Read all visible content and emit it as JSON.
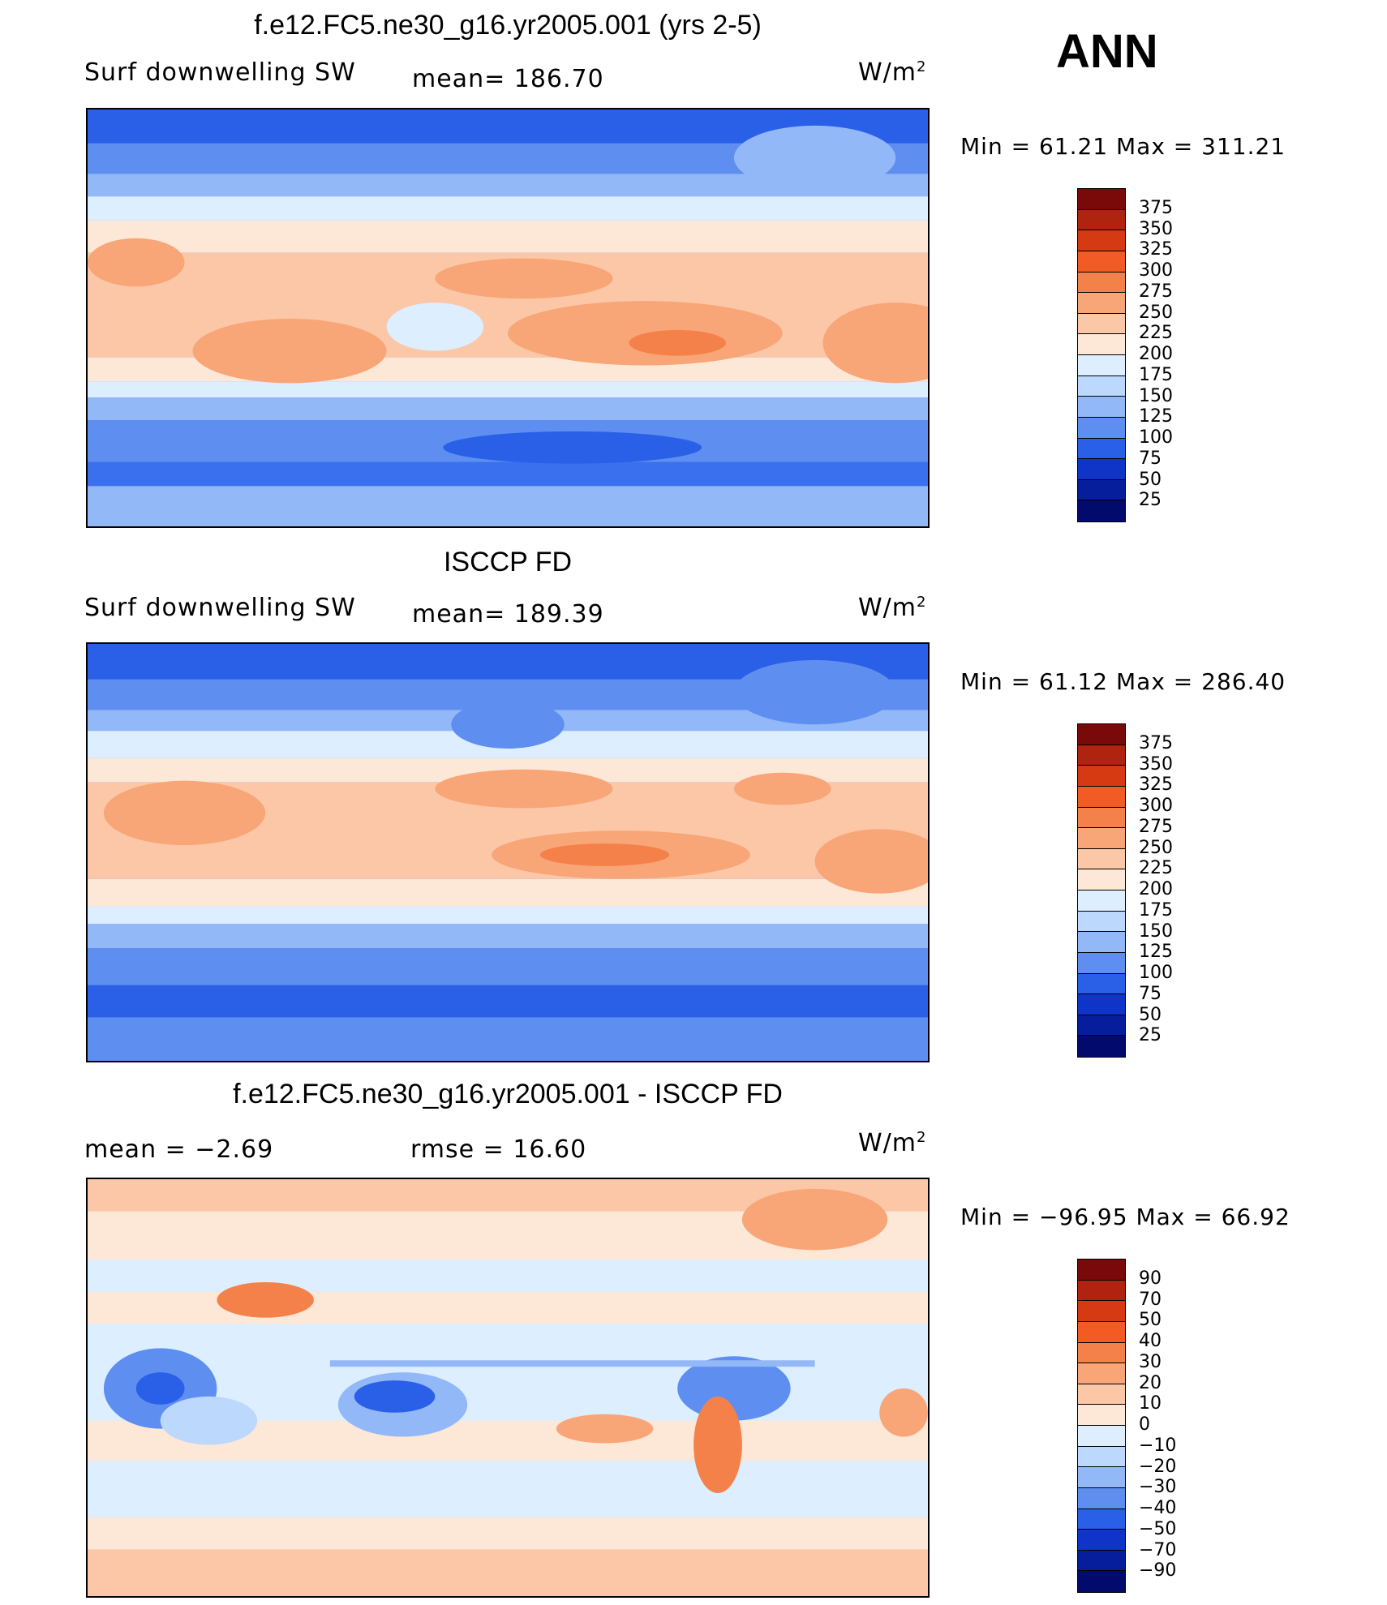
{
  "season": "ANN",
  "panels": [
    {
      "title": "f.e12.FC5.ne30_g16.yr2005.001 (yrs 2-5)",
      "left_text": "Surf  downwelling  SW",
      "mid_text": "mean=  186.70",
      "units_base": "W/m",
      "units_exp": "2",
      "minmax": "Min  =    61.21  Max  =  311.21",
      "colorbar": {
        "labels": [
          "375",
          "350",
          "325",
          "300",
          "275",
          "250",
          "225",
          "200",
          "175",
          "150",
          "125",
          "100",
          "75",
          "50",
          "25"
        ],
        "colors": [
          "#7a0a0a",
          "#b0230e",
          "#d63a12",
          "#f25c24",
          "#f5814a",
          "#f8a578",
          "#fbc7a6",
          "#fde7d6",
          "#dceeff",
          "#bcd8fc",
          "#93b8f8",
          "#5e8ff0",
          "#2a5fe8",
          "#0f35c8",
          "#061e9c",
          "#030a6e"
        ]
      }
    },
    {
      "title": "ISCCP FD",
      "left_text": "Surf  downwelling  SW",
      "mid_text": "mean=  189.39",
      "units_base": "W/m",
      "units_exp": "2",
      "minmax": "Min  =    61.12  Max  =  286.40",
      "colorbar": {
        "labels": [
          "375",
          "350",
          "325",
          "300",
          "275",
          "250",
          "225",
          "200",
          "175",
          "150",
          "125",
          "100",
          "75",
          "50",
          "25"
        ],
        "colors": [
          "#7a0a0a",
          "#b0230e",
          "#d63a12",
          "#f25c24",
          "#f5814a",
          "#f8a578",
          "#fbc7a6",
          "#fde7d6",
          "#dceeff",
          "#bcd8fc",
          "#93b8f8",
          "#5e8ff0",
          "#2a5fe8",
          "#0f35c8",
          "#061e9c",
          "#030a6e"
        ]
      }
    },
    {
      "title": "f.e12.FC5.ne30_g16.yr2005.001 - ISCCP FD",
      "left_text": "mean  =    −2.69",
      "mid_text": "rmse  =    16.60",
      "units_base": "W/m",
      "units_exp": "2",
      "minmax": "Min  =  −96.95  Max  =    66.92",
      "colorbar": {
        "labels": [
          "90",
          "70",
          "50",
          "40",
          "30",
          "20",
          "10",
          "0",
          "−10",
          "−20",
          "−30",
          "−40",
          "−50",
          "−70",
          "−90"
        ],
        "colors": [
          "#7a0a0a",
          "#b0230e",
          "#d63a12",
          "#f25c24",
          "#f5814a",
          "#f8a578",
          "#fbc7a6",
          "#fde7d6",
          "#dceeff",
          "#bcd8fc",
          "#93b8f8",
          "#5e8ff0",
          "#2a5fe8",
          "#0f35c8",
          "#061e9c",
          "#030a6e"
        ]
      }
    }
  ]
}
